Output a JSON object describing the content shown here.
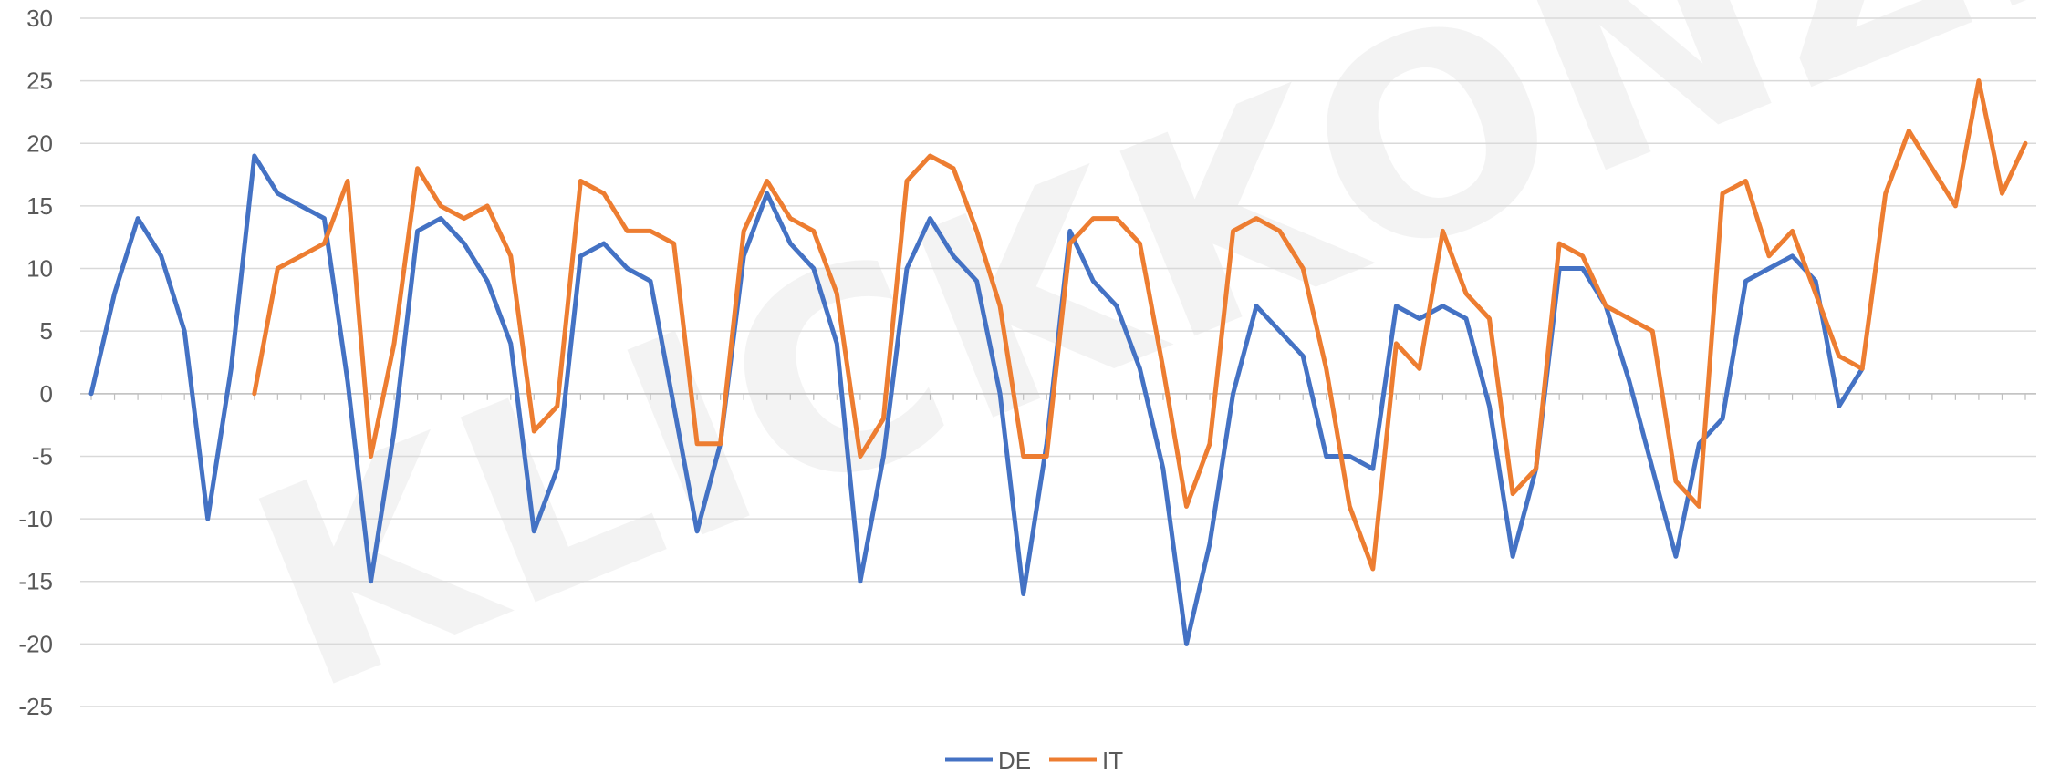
{
  "watermark": "KLICKKONZEPT",
  "chart_data": {
    "type": "line",
    "title": "",
    "xlabel": "",
    "ylabel": "",
    "ylim": [
      -25,
      30
    ],
    "yticks": [
      30,
      25,
      20,
      15,
      10,
      5,
      0,
      -5,
      -10,
      -15,
      -20,
      -25
    ],
    "grid": true,
    "legend": "bottom-center",
    "categories_count": 84,
    "series": [
      {
        "name": "DE",
        "color": "#4472C4",
        "values": [
          0,
          8,
          14,
          11,
          5,
          -10,
          2,
          19,
          16,
          15,
          14,
          1,
          -15,
          -3,
          13,
          14,
          12,
          9,
          4,
          -11,
          -6,
          11,
          12,
          10,
          9,
          -1,
          -11,
          -4,
          11,
          16,
          12,
          10,
          4,
          -15,
          -5,
          10,
          14,
          11,
          9,
          0,
          -16,
          -4,
          13,
          9,
          7,
          2,
          -6,
          -20,
          -12,
          0,
          7,
          5,
          3,
          -5,
          -5,
          -6,
          7,
          6,
          7,
          6,
          -1,
          -13,
          -6,
          10,
          10,
          7,
          1,
          -6,
          -13,
          -4,
          -2,
          9,
          10,
          11,
          9,
          -1,
          2,
          null,
          null,
          null,
          null,
          null,
          null,
          null
        ]
      },
      {
        "name": "IT",
        "color": "#ED7D31",
        "values": [
          null,
          null,
          null,
          null,
          null,
          null,
          null,
          0,
          10,
          11,
          12,
          17,
          -5,
          4,
          18,
          15,
          14,
          15,
          11,
          -3,
          -1,
          17,
          16,
          13,
          13,
          12,
          -4,
          -4,
          13,
          17,
          14,
          13,
          8,
          -5,
          -2,
          17,
          19,
          18,
          13,
          7,
          -5,
          -5,
          12,
          14,
          14,
          12,
          2,
          -9,
          -4,
          13,
          14,
          13,
          10,
          2,
          -9,
          -14,
          4,
          2,
          13,
          8,
          6,
          -8,
          -6,
          12,
          11,
          7,
          6,
          5,
          -7,
          -9,
          16,
          17,
          11,
          13,
          8,
          3,
          2,
          16,
          21,
          18,
          15,
          25,
          16,
          20
        ]
      }
    ]
  }
}
